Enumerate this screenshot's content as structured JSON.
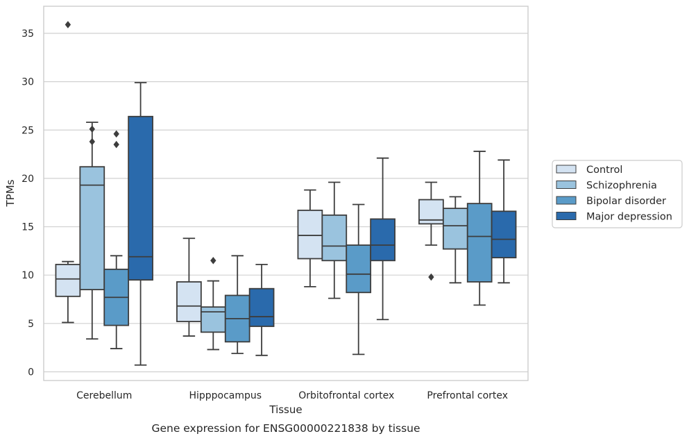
{
  "caption": "Gene expression for ENSG00000221838 by tissue",
  "chart_data": {
    "type": "box",
    "xlabel": "Tissue",
    "ylabel": "TPMs",
    "ylim": [
      -0.9,
      37.8
    ],
    "yticks": [
      0,
      5,
      10,
      15,
      20,
      25,
      30,
      35
    ],
    "grid": "horizontal",
    "legend_position": "center-right outside",
    "categories": [
      "Cerebellum",
      "Hipppocampus",
      "Orbitofrontal cortex",
      "Prefrontal cortex"
    ],
    "series": [
      {
        "name": "Control",
        "color": "#d4e3f2",
        "boxes": [
          {
            "whislo": 5.1,
            "q1": 7.8,
            "med": 9.6,
            "q3": 11.1,
            "whishi": 11.4,
            "fliers": [
              35.9
            ]
          },
          {
            "whislo": 3.7,
            "q1": 5.2,
            "med": 6.8,
            "q3": 9.3,
            "whishi": 13.8,
            "fliers": []
          },
          {
            "whislo": 8.8,
            "q1": 11.7,
            "med": 14.1,
            "q3": 16.7,
            "whishi": 18.8,
            "fliers": []
          },
          {
            "whislo": 13.1,
            "q1": 15.3,
            "med": 15.7,
            "q3": 17.8,
            "whishi": 19.6,
            "fliers": [
              9.8
            ]
          }
        ]
      },
      {
        "name": "Schizophrenia",
        "color": "#9ac3de",
        "boxes": [
          {
            "whislo": 3.4,
            "q1": 8.5,
            "med": 19.3,
            "q3": 21.2,
            "whishi": 25.8,
            "fliers": [
              23.8,
              25.1
            ]
          },
          {
            "whislo": 2.3,
            "q1": 4.1,
            "med": 6.2,
            "q3": 6.7,
            "whishi": 9.4,
            "fliers": [
              11.5
            ]
          },
          {
            "whislo": 7.6,
            "q1": 11.5,
            "med": 13.0,
            "q3": 16.2,
            "whishi": 19.6,
            "fliers": []
          },
          {
            "whislo": 9.2,
            "q1": 12.7,
            "med": 15.1,
            "q3": 16.9,
            "whishi": 18.1,
            "fliers": []
          }
        ]
      },
      {
        "name": "Bipolar disorder",
        "color": "#5a9bc8",
        "boxes": [
          {
            "whislo": 2.4,
            "q1": 4.8,
            "med": 7.7,
            "q3": 10.6,
            "whishi": 12.0,
            "fliers": [
              23.5,
              24.6
            ]
          },
          {
            "whislo": 1.9,
            "q1": 3.1,
            "med": 5.5,
            "q3": 7.9,
            "whishi": 12.0,
            "fliers": []
          },
          {
            "whislo": 1.8,
            "q1": 8.2,
            "med": 10.1,
            "q3": 13.1,
            "whishi": 17.3,
            "fliers": []
          },
          {
            "whislo": 6.9,
            "q1": 9.3,
            "med": 14.0,
            "q3": 17.4,
            "whishi": 22.8,
            "fliers": []
          }
        ]
      },
      {
        "name": "Major depression",
        "color": "#2a6aac",
        "boxes": [
          {
            "whislo": 0.7,
            "q1": 9.5,
            "med": 11.9,
            "q3": 26.4,
            "whishi": 29.9,
            "fliers": []
          },
          {
            "whislo": 1.7,
            "q1": 4.7,
            "med": 5.7,
            "q3": 8.6,
            "whishi": 11.1,
            "fliers": []
          },
          {
            "whislo": 5.4,
            "q1": 11.5,
            "med": 13.1,
            "q3": 15.8,
            "whishi": 22.1,
            "fliers": []
          },
          {
            "whislo": 9.2,
            "q1": 11.8,
            "med": 13.7,
            "q3": 16.6,
            "whishi": 21.9,
            "fliers": []
          }
        ]
      }
    ]
  }
}
